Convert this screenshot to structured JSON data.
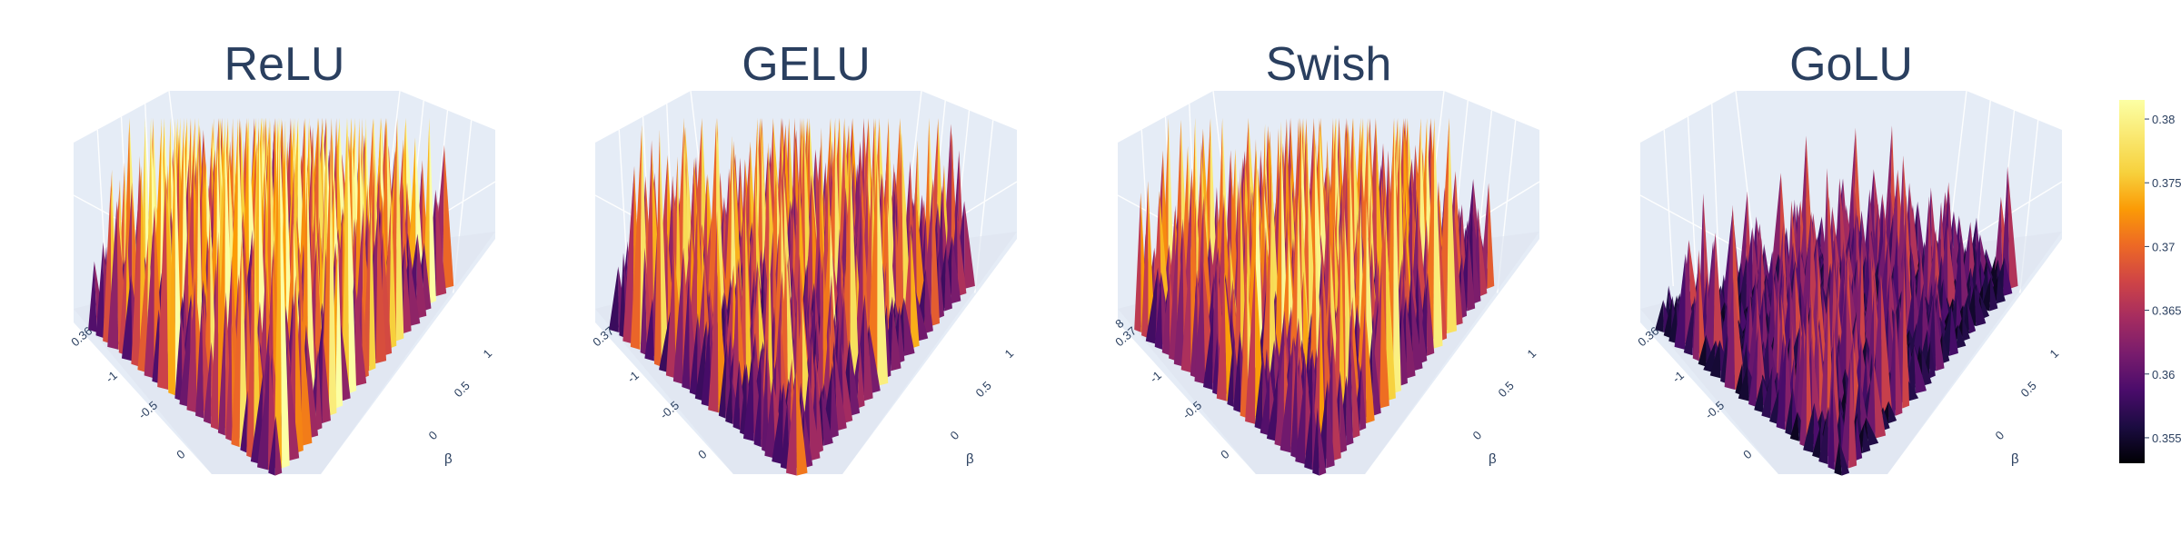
{
  "chart_data": {
    "type": "surface",
    "colorscale": "inferno",
    "y_axis_label": "β",
    "colorbar": {
      "range": [
        0.353,
        0.3815
      ],
      "ticks": [
        "0.355",
        "0.36",
        "0.365",
        "0.37",
        "0.375",
        "0.38"
      ],
      "tick_values": [
        0.355,
        0.36,
        0.365,
        0.37,
        0.375,
        0.38
      ]
    },
    "x_ticks": [
      "-1",
      "-0.5",
      "0"
    ],
    "y_ticks": [
      "1",
      "0.5",
      "0"
    ],
    "panels": [
      {
        "title": "ReLU",
        "z_tick": "0.36",
        "spike_level": 0.78,
        "base_level": 0.28,
        "seed": 11
      },
      {
        "title": "GELU",
        "z_tick": "0.37",
        "spike_level": 0.62,
        "base_level": 0.22,
        "seed": 23
      },
      {
        "title": "Swish",
        "z_tick": "0.37",
        "z_tick_upper": "8",
        "spike_level": 0.66,
        "base_level": 0.24,
        "seed": 37
      },
      {
        "title": "GoLU",
        "z_tick": "0.36",
        "spike_level": 0.4,
        "base_level": 0.06,
        "seed": 51
      }
    ]
  }
}
